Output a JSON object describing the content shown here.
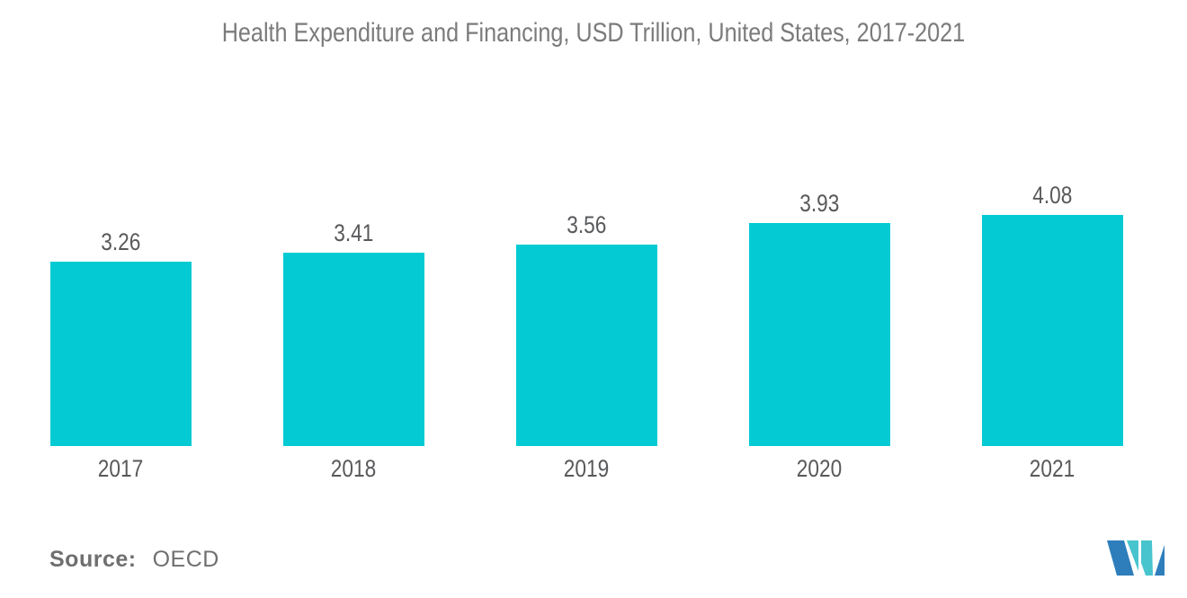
{
  "title": "Health Expenditure and Financing, USD Trillion, United States, 2017-2021",
  "source": {
    "label": "Source:",
    "value": "OECD"
  },
  "logo": {
    "name": "mordor-intelligence-logo"
  },
  "colors": {
    "bar": "#04cbd3",
    "title_text": "#7b7b7b",
    "label_text": "#58595b",
    "source_text": "#6f6f6f",
    "logo_blue": "#2e7ebc",
    "logo_teal": "#48c4ce"
  },
  "chart_data": {
    "type": "bar",
    "title": "Health Expenditure and Financing, USD Trillion, United States, 2017-2021",
    "categories": [
      "2017",
      "2018",
      "2019",
      "2020",
      "2021"
    ],
    "values": [
      3.26,
      3.41,
      3.56,
      3.93,
      4.08
    ],
    "value_labels": [
      "3.26",
      "3.41",
      "3.56",
      "3.93",
      "4.08"
    ],
    "series_name": "Health Expenditure and Financing (USD Trillion)",
    "xlabel": "",
    "ylabel": "",
    "ylim": [
      0,
      4.6
    ],
    "grid": false,
    "legend": false,
    "axes_visible": false,
    "bar_color": "#04cbd3",
    "source": "OECD"
  }
}
